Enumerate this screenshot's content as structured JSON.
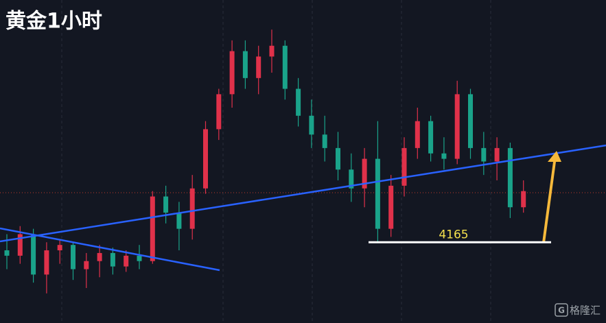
{
  "chart_data": {
    "type": "candlestick",
    "title": "黄金1小时",
    "watermark": "格隆汇",
    "ylim": [
      4135,
      4255
    ],
    "level": 4165,
    "level_label": "4165",
    "up_color": "#e0314a",
    "down_color": "#1aa38a",
    "open": [
      4162,
      4160,
      4168,
      4153,
      4162,
      4164,
      4155,
      4158,
      4161,
      4156,
      4160,
      4158,
      4182,
      4176,
      4170,
      4185,
      4207,
      4220,
      4236,
      4226,
      4234,
      4238,
      4222,
      4212,
      4205,
      4200,
      4192,
      4185,
      4196,
      4170,
      4186,
      4200,
      4210,
      4198,
      4196,
      4220,
      4200,
      4195,
      4200,
      4178
    ],
    "high": [
      4168,
      4171,
      4170,
      4165,
      4166,
      4165,
      4161,
      4164,
      4163,
      4162,
      4164,
      4184,
      4186,
      4180,
      4190,
      4210,
      4222,
      4240,
      4240,
      4238,
      4244,
      4240,
      4226,
      4218,
      4212,
      4206,
      4198,
      4200,
      4210,
      4190,
      4204,
      4215,
      4212,
      4204,
      4225,
      4222,
      4206,
      4204,
      4202,
      4188
    ],
    "low": [
      4155,
      4157,
      4150,
      4146,
      4157,
      4151,
      4148,
      4152,
      4153,
      4154,
      4155,
      4157,
      4172,
      4162,
      4166,
      4183,
      4203,
      4215,
      4222,
      4220,
      4228,
      4218,
      4208,
      4200,
      4195,
      4188,
      4180,
      4178,
      4165,
      4167,
      4182,
      4196,
      4195,
      4192,
      4194,
      4196,
      4190,
      4188,
      4174,
      4176
    ],
    "close": [
      4160,
      4168,
      4153,
      4162,
      4164,
      4155,
      4158,
      4161,
      4156,
      4160,
      4158,
      4182,
      4176,
      4170,
      4185,
      4207,
      4220,
      4236,
      4226,
      4234,
      4238,
      4222,
      4212,
      4205,
      4200,
      4192,
      4185,
      4196,
      4170,
      4186,
      4200,
      4210,
      4198,
      4196,
      4220,
      4200,
      4195,
      4200,
      4178,
      4184
    ]
  }
}
